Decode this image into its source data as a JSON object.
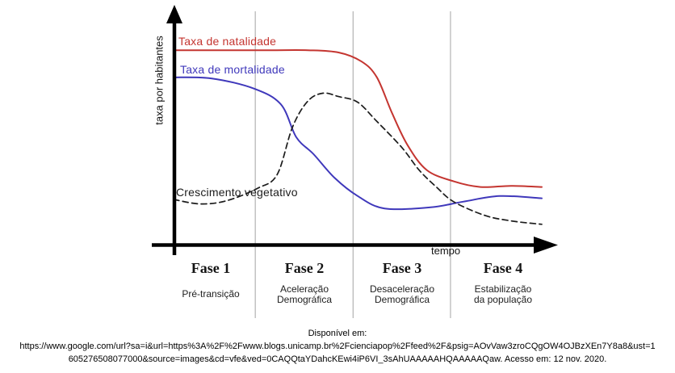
{
  "axis_labels": {
    "y": "taxa por habitantes",
    "x": "tempo"
  },
  "curve_labels": {
    "natalidade": "Taxa de natalidade",
    "mortalidade": "Taxa de mortalidade",
    "crescimento": "Crescimento vegetativo"
  },
  "chart_data": {
    "type": "line",
    "title": "",
    "xlabel": "tempo",
    "ylabel": "taxa por habitantes",
    "x_axis": {
      "range": [
        0,
        100
      ],
      "note": "schematic time axis, no tick labels"
    },
    "y_axis": {
      "range": [
        0,
        100
      ],
      "note": "schematic rate axis, no tick labels"
    },
    "grid": "three vertical phase-divider lines",
    "grid_color": "#b3b3b3",
    "legend_position": "labels drawn next to curves",
    "phase_dividers_pct": [
      21.3,
      46.8,
      72.2
    ],
    "series": [
      {
        "name": "Taxa de natalidade",
        "color": "#c43530",
        "style": "solid",
        "points": [
          [
            0,
            86
          ],
          [
            10,
            86
          ],
          [
            25,
            86
          ],
          [
            35,
            86
          ],
          [
            43,
            85
          ],
          [
            49,
            81
          ],
          [
            53,
            74
          ],
          [
            57,
            58
          ],
          [
            61,
            44
          ],
          [
            66,
            33
          ],
          [
            73,
            28
          ],
          [
            80,
            25.5
          ],
          [
            88,
            26
          ],
          [
            96,
            25.5
          ]
        ]
      },
      {
        "name": "Taxa de mortalidade",
        "color": "#3f38bb",
        "style": "solid",
        "points": [
          [
            0,
            74
          ],
          [
            10,
            73.5
          ],
          [
            21,
            69
          ],
          [
            28,
            62
          ],
          [
            32,
            47.5
          ],
          [
            36.5,
            40
          ],
          [
            42,
            29.5
          ],
          [
            48,
            21.5
          ],
          [
            55,
            16
          ],
          [
            67,
            16.5
          ],
          [
            75.5,
            19
          ],
          [
            85,
            21.5
          ],
          [
            96,
            20.5
          ]
        ]
      },
      {
        "name": "Crescimento vegetativo",
        "color": "#1c1c1c",
        "style": "dashed",
        "points": [
          [
            0,
            20
          ],
          [
            7,
            18
          ],
          [
            14,
            19.5
          ],
          [
            22,
            25
          ],
          [
            27,
            31
          ],
          [
            31,
            52
          ],
          [
            35,
            63.5
          ],
          [
            39,
            67
          ],
          [
            43,
            65.5
          ],
          [
            48,
            63
          ],
          [
            53,
            54.5
          ],
          [
            59.5,
            43
          ],
          [
            64,
            33
          ],
          [
            68.5,
            25.5
          ],
          [
            73,
            19
          ],
          [
            81,
            13
          ],
          [
            88,
            10.5
          ],
          [
            96,
            9
          ]
        ]
      }
    ]
  },
  "phases": [
    {
      "title": "Fase 1",
      "desc_lines": [
        "Pré-transição"
      ]
    },
    {
      "title": "Fase 2",
      "desc_lines": [
        "Aceleração",
        "Demográfica"
      ]
    },
    {
      "title": "Fase 3",
      "desc_lines": [
        "Desaceleração",
        "Demográfica"
      ]
    },
    {
      "title": "Fase 4",
      "desc_lines": [
        "Estabilização",
        "da população"
      ]
    }
  ],
  "citation": {
    "intro": "Disponível em:",
    "line1": "https://www.google.com/url?sa=i&url=https%3A%2F%2Fwww.blogs.unicamp.br%2Fcienciapop%2Ffeed%2F&psig=AOvVaw3zroCQgOW4OJBzXEn7Y8a8&ust=1",
    "line2": "605276508077000&source=images&cd=vfe&ved=0CAQQtaYDahcKEwi4iP6VI_3sAhUAAAAAHQAAAAAQaw. Acesso em: 12 nov. 2020."
  }
}
